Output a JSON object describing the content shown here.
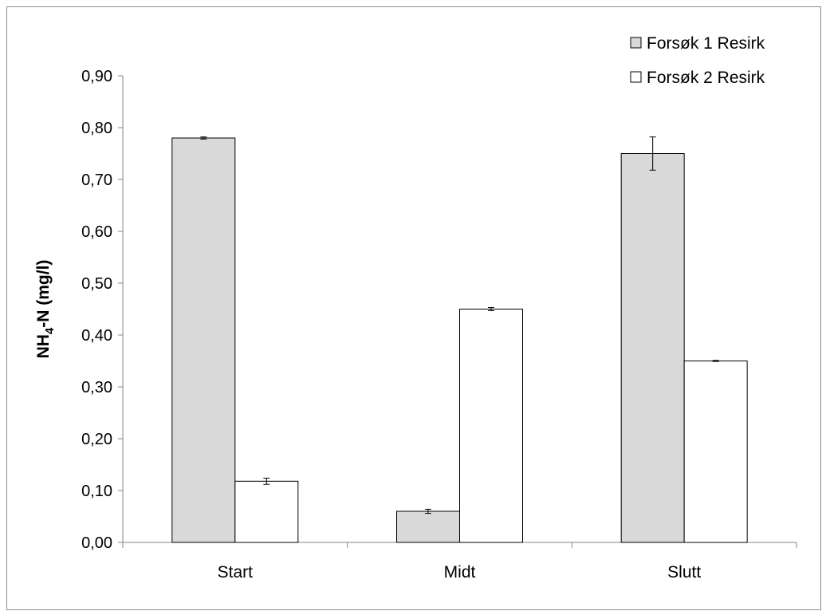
{
  "chart_data": {
    "type": "bar",
    "title": "",
    "xlabel": "",
    "ylabel": {
      "main": "NH",
      "subscript": "4",
      "rest": "-N (mg/l)"
    },
    "ylim": [
      0,
      0.9
    ],
    "ytick_step": 0.1,
    "ytick_labels": [
      "0,00",
      "0,10",
      "0,20",
      "0,30",
      "0,40",
      "0,50",
      "0,60",
      "0,70",
      "0,80",
      "0,90"
    ],
    "categories": [
      "Start",
      "Midt",
      "Slutt"
    ],
    "series": [
      {
        "name": "Forsøk 1 Resirk",
        "color": "#d9d9d9",
        "values": [
          0.78,
          0.06,
          0.75
        ],
        "errors": [
          0.002,
          0.004,
          0.032
        ]
      },
      {
        "name": "Forsøk 2 Resirk",
        "color": "#ffffff",
        "values": [
          0.118,
          0.45,
          0.35
        ],
        "errors": [
          0.006,
          0.003,
          0.001
        ]
      }
    ],
    "legend_position": "top-right",
    "grid": false
  }
}
